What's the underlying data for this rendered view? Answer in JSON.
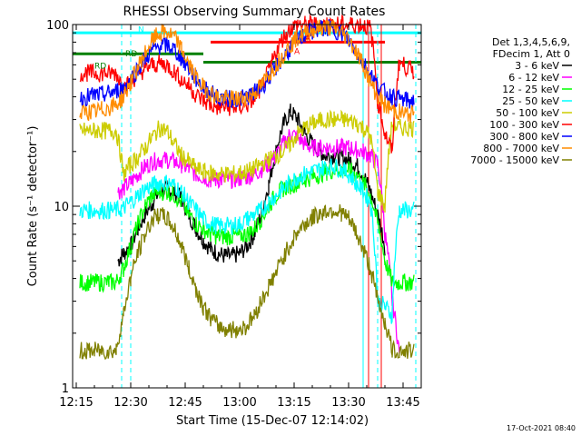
{
  "chart_data": {
    "type": "line",
    "title": "RHESSI Observing Summary Count Rates",
    "xlabel": "Start Time (15-Dec-07 12:14:02)",
    "ylabel": "Count Rate (s⁻¹ detector⁻¹)",
    "y_scale": "log",
    "ylim": [
      1,
      100
    ],
    "y_ticks": [
      {
        "value": 1,
        "label": "1"
      },
      {
        "value": 10,
        "label": "10"
      },
      {
        "value": 100,
        "label": "100"
      }
    ],
    "xlim_minutes": [
      0,
      96
    ],
    "x_ticks": [
      {
        "minute": 1,
        "label": "12:15"
      },
      {
        "minute": 16,
        "label": "12:30"
      },
      {
        "minute": 31,
        "label": "12:45"
      },
      {
        "minute": 46,
        "label": "13:00"
      },
      {
        "minute": 61,
        "label": "13:15"
      },
      {
        "minute": 76,
        "label": "13:30"
      },
      {
        "minute": 91,
        "label": "13:45"
      }
    ],
    "legend_position": "right",
    "legend_header": [
      "Det 1,3,4,5,6,9,",
      "FDecim 1, Att 0"
    ],
    "series": [
      {
        "name": "3 - 6 keV",
        "color": "#000000",
        "x": [
          2,
          12,
          12.5,
          14,
          16,
          18,
          20,
          22,
          24,
          26,
          28,
          30,
          32,
          34,
          36,
          38,
          40,
          42,
          44,
          46,
          48,
          50,
          52,
          54,
          56,
          58,
          60,
          62,
          64,
          66,
          68,
          70,
          72,
          74,
          76,
          78,
          80,
          82,
          84,
          86,
          88,
          90,
          92,
          94
        ],
        "y": [
          0,
          0,
          5,
          5.5,
          6,
          7.5,
          9,
          10.5,
          12,
          12.5,
          12,
          11,
          9,
          7.5,
          6.5,
          5.8,
          5.5,
          5.3,
          5.3,
          5.5,
          6,
          7,
          9,
          13,
          20,
          28,
          33,
          30,
          25,
          22,
          20,
          19,
          19,
          18.5,
          18,
          17,
          15,
          12,
          9,
          6,
          0,
          0,
          0,
          0
        ]
      },
      {
        "name": "6 - 12 keV",
        "color": "#ff00ff",
        "x": [
          2,
          12,
          12.5,
          14,
          16,
          18,
          20,
          22,
          24,
          26,
          28,
          30,
          32,
          34,
          36,
          38,
          40,
          42,
          44,
          46,
          48,
          50,
          52,
          54,
          56,
          58,
          60,
          62,
          64,
          66,
          68,
          70,
          72,
          74,
          76,
          78,
          80,
          82,
          84,
          86,
          88,
          90,
          92,
          94
        ],
        "y": [
          0,
          0,
          12,
          12.5,
          13.5,
          15,
          16.5,
          17.5,
          18,
          18,
          17.5,
          17,
          16,
          15,
          14.5,
          14,
          14,
          14,
          14,
          14.2,
          14.5,
          15,
          16,
          17,
          19,
          22,
          25,
          24,
          22,
          21,
          21,
          21,
          21,
          21,
          21,
          20.5,
          20,
          19,
          17,
          7,
          3,
          1.5,
          0,
          0
        ]
      },
      {
        "name": "12 - 25 keV",
        "color": "#00ff00",
        "x": [
          2,
          4,
          6,
          8,
          10,
          12,
          14,
          16,
          18,
          20,
          22,
          24,
          26,
          28,
          30,
          32,
          34,
          36,
          38,
          40,
          42,
          44,
          46,
          48,
          50,
          52,
          54,
          56,
          58,
          60,
          62,
          64,
          66,
          68,
          70,
          72,
          74,
          76,
          78,
          80,
          82,
          84,
          86,
          88,
          90,
          92,
          94
        ],
        "y": [
          3.8,
          3.8,
          3.8,
          3.8,
          3.8,
          3.8,
          4.5,
          6,
          8,
          10,
          11.5,
          12,
          12,
          11.5,
          10.5,
          9,
          8,
          7.5,
          7,
          6.8,
          6.8,
          6.8,
          6.9,
          7,
          7.5,
          8.5,
          10,
          11.5,
          12.5,
          13,
          13.5,
          14,
          14.5,
          15,
          15.5,
          15.8,
          16,
          15.8,
          15,
          13.5,
          11.5,
          8,
          5,
          3.8,
          3.8,
          3.8,
          3.8
        ]
      },
      {
        "name": "25 - 50 keV",
        "color": "#00ffff",
        "x": [
          2,
          4,
          6,
          8,
          10,
          12,
          14,
          16,
          18,
          20,
          22,
          24,
          26,
          28,
          30,
          32,
          34,
          36,
          38,
          40,
          42,
          44,
          46,
          48,
          50,
          52,
          54,
          56,
          58,
          60,
          62,
          64,
          66,
          68,
          70,
          72,
          74,
          76,
          78,
          80,
          82,
          84,
          86,
          88,
          90,
          92,
          94
        ],
        "y": [
          9.5,
          9.5,
          9.5,
          9.5,
          9.5,
          9.5,
          9.8,
          10.5,
          11.5,
          12.5,
          13,
          13.5,
          13.5,
          13,
          12,
          10.5,
          9.5,
          8.5,
          8,
          7.8,
          7.8,
          7.8,
          8,
          8.5,
          9,
          9.5,
          10.5,
          11.5,
          12.5,
          13.5,
          14.5,
          15,
          15.5,
          16,
          16.5,
          16.5,
          16,
          15,
          13.5,
          12,
          10.5,
          3,
          2.8,
          2.5,
          9.5,
          9.5,
          9.5
        ]
      },
      {
        "name": "50 - 100 keV",
        "color": "#cccc00",
        "x": [
          2,
          4,
          6,
          8,
          10,
          12,
          14,
          16,
          18,
          20,
          22,
          24,
          26,
          28,
          30,
          32,
          34,
          36,
          38,
          40,
          42,
          44,
          46,
          48,
          50,
          52,
          54,
          56,
          58,
          60,
          62,
          64,
          66,
          68,
          70,
          72,
          74,
          76,
          78,
          80,
          82,
          84,
          86,
          88,
          90,
          92,
          94
        ],
        "y": [
          26,
          26,
          26,
          26,
          26,
          26,
          15,
          17,
          18.5,
          21,
          24,
          27,
          26,
          22,
          19,
          17.5,
          16,
          15.5,
          15.2,
          15,
          15,
          15,
          15.2,
          15.5,
          16,
          17,
          18,
          19,
          20,
          22,
          25,
          27,
          28.5,
          29.5,
          30,
          30,
          30,
          29.5,
          29,
          27,
          24,
          12,
          10,
          28,
          27,
          27,
          27
        ]
      },
      {
        "name": "100 - 300 keV",
        "color": "#ff0000",
        "x": [
          2,
          4,
          6,
          8,
          10,
          12,
          14,
          16,
          18,
          20,
          22,
          24,
          26,
          28,
          30,
          32,
          34,
          36,
          38,
          40,
          42,
          44,
          46,
          48,
          50,
          52,
          54,
          56,
          58,
          60,
          62,
          64,
          66,
          68,
          70,
          72,
          74,
          76,
          78,
          80,
          82,
          84,
          86,
          88,
          90,
          92,
          94
        ],
        "y": [
          54,
          54,
          54,
          54,
          54,
          54,
          45,
          48,
          53,
          57,
          60,
          61,
          60,
          55,
          50,
          46,
          41,
          38,
          36,
          35,
          35,
          35,
          35,
          36,
          39,
          45,
          55,
          70,
          85,
          95,
          100,
          100,
          100,
          100,
          100,
          100,
          100,
          100,
          100,
          100,
          95,
          38,
          25,
          20,
          62,
          58,
          55
        ]
      },
      {
        "name": "300 - 800 keV",
        "color": "#0000ff",
        "x": [
          2,
          4,
          6,
          8,
          10,
          12,
          14,
          16,
          18,
          20,
          22,
          24,
          26,
          28,
          30,
          32,
          34,
          36,
          38,
          40,
          42,
          44,
          46,
          48,
          50,
          52,
          54,
          56,
          58,
          60,
          62,
          64,
          66,
          68,
          70,
          72,
          74,
          76,
          78,
          80,
          82,
          84,
          86,
          88,
          90,
          92,
          94
        ],
        "y": [
          39,
          40,
          41,
          41,
          42,
          43,
          45,
          50,
          57,
          65,
          72,
          76,
          77,
          73,
          65,
          57,
          50,
          45,
          42,
          40,
          39,
          39,
          39,
          40,
          42,
          45,
          51,
          58,
          66,
          74,
          82,
          88,
          92,
          95,
          96,
          94,
          90,
          82,
          72,
          62,
          53,
          46,
          42,
          40,
          39,
          38,
          38
        ]
      },
      {
        "name": "800 - 7000 keV",
        "color": "#ff8c00",
        "x": [
          2,
          4,
          6,
          8,
          10,
          12,
          14,
          16,
          18,
          20,
          22,
          24,
          26,
          28,
          30,
          32,
          34,
          36,
          38,
          40,
          42,
          44,
          46,
          48,
          50,
          52,
          54,
          56,
          58,
          60,
          62,
          64,
          66,
          68,
          70,
          72,
          74,
          76,
          78,
          80,
          82,
          84,
          86,
          88,
          90,
          92,
          94
        ],
        "y": [
          32,
          33,
          33,
          34,
          35,
          36,
          40,
          48,
          58,
          70,
          82,
          90,
          90,
          85,
          73,
          60,
          51,
          45,
          42,
          40,
          39,
          39,
          39,
          40,
          42,
          46,
          53,
          60,
          68,
          77,
          85,
          90,
          93,
          96,
          97,
          95,
          91,
          83,
          72,
          60,
          48,
          40,
          36,
          34,
          33,
          32,
          32
        ]
      },
      {
        "name": "7000 - 15000 keV",
        "color": "#808000",
        "x": [
          2,
          4,
          6,
          8,
          10,
          12,
          14,
          16,
          18,
          20,
          22,
          24,
          26,
          28,
          30,
          32,
          34,
          36,
          38,
          40,
          42,
          44,
          46,
          48,
          50,
          52,
          54,
          56,
          58,
          60,
          62,
          64,
          66,
          68,
          70,
          72,
          74,
          76,
          78,
          80,
          82,
          84,
          86,
          88,
          90,
          92,
          94
        ],
        "y": [
          1.6,
          1.6,
          1.6,
          1.6,
          1.6,
          1.6,
          2.5,
          4,
          5.5,
          7,
          8.5,
          9,
          8.5,
          7.5,
          6,
          4.5,
          3.5,
          2.8,
          2.4,
          2.2,
          2.1,
          2.1,
          2.1,
          2.2,
          2.5,
          3,
          3.6,
          4.3,
          5.2,
          6.2,
          7.2,
          8,
          8.6,
          9.1,
          9.4,
          9.5,
          9.2,
          8.5,
          7.2,
          5.8,
          4.5,
          3,
          2.3,
          1.6,
          1.6,
          1.6,
          1.6
        ]
      }
    ],
    "annotations": [
      {
        "text": "N",
        "minute": 18,
        "value": 95,
        "color": "#00ffff"
      },
      {
        "text": "RD",
        "minute": 14.5,
        "value": 70,
        "color": "#008000"
      },
      {
        "text": "RD",
        "minute": 6,
        "value": 60,
        "color": "#008000"
      },
      {
        "text": "A",
        "minute": 61,
        "value": 72,
        "color": "#ff0000"
      },
      {
        "text": "A",
        "minute": 64,
        "value": 85,
        "color": "#ff0000"
      }
    ],
    "bands": [
      {
        "color": "#00ffff",
        "value": 90,
        "from_minute": 0,
        "to_minute": 96,
        "style": "solid"
      },
      {
        "color": "#008000",
        "value": 69,
        "from_minute": 0,
        "to_minute": 36,
        "style": "solid"
      },
      {
        "color": "#008000",
        "value": 62,
        "from_minute": 36,
        "to_minute": 96,
        "style": "solid"
      },
      {
        "color": "#ff0000",
        "value": 80,
        "from_minute": 38,
        "to_minute": 86,
        "style": "solid"
      }
    ],
    "vertical_markers": [
      {
        "minute": 13.5,
        "color": "#00ffff",
        "style": "dashed"
      },
      {
        "minute": 16,
        "color": "#00ffff",
        "style": "dashed"
      },
      {
        "minute": 80,
        "color": "#00ffff",
        "style": "solid"
      },
      {
        "minute": 84,
        "color": "#00ffff",
        "style": "dashed"
      },
      {
        "minute": 94.5,
        "color": "#00ffff",
        "style": "dashed"
      },
      {
        "minute": 81.5,
        "color": "#ff0000",
        "style": "solid"
      },
      {
        "minute": 85,
        "color": "#ff0000",
        "style": "solid"
      }
    ]
  },
  "footer": {
    "timestamp": "17-Oct-2021 08:40"
  }
}
